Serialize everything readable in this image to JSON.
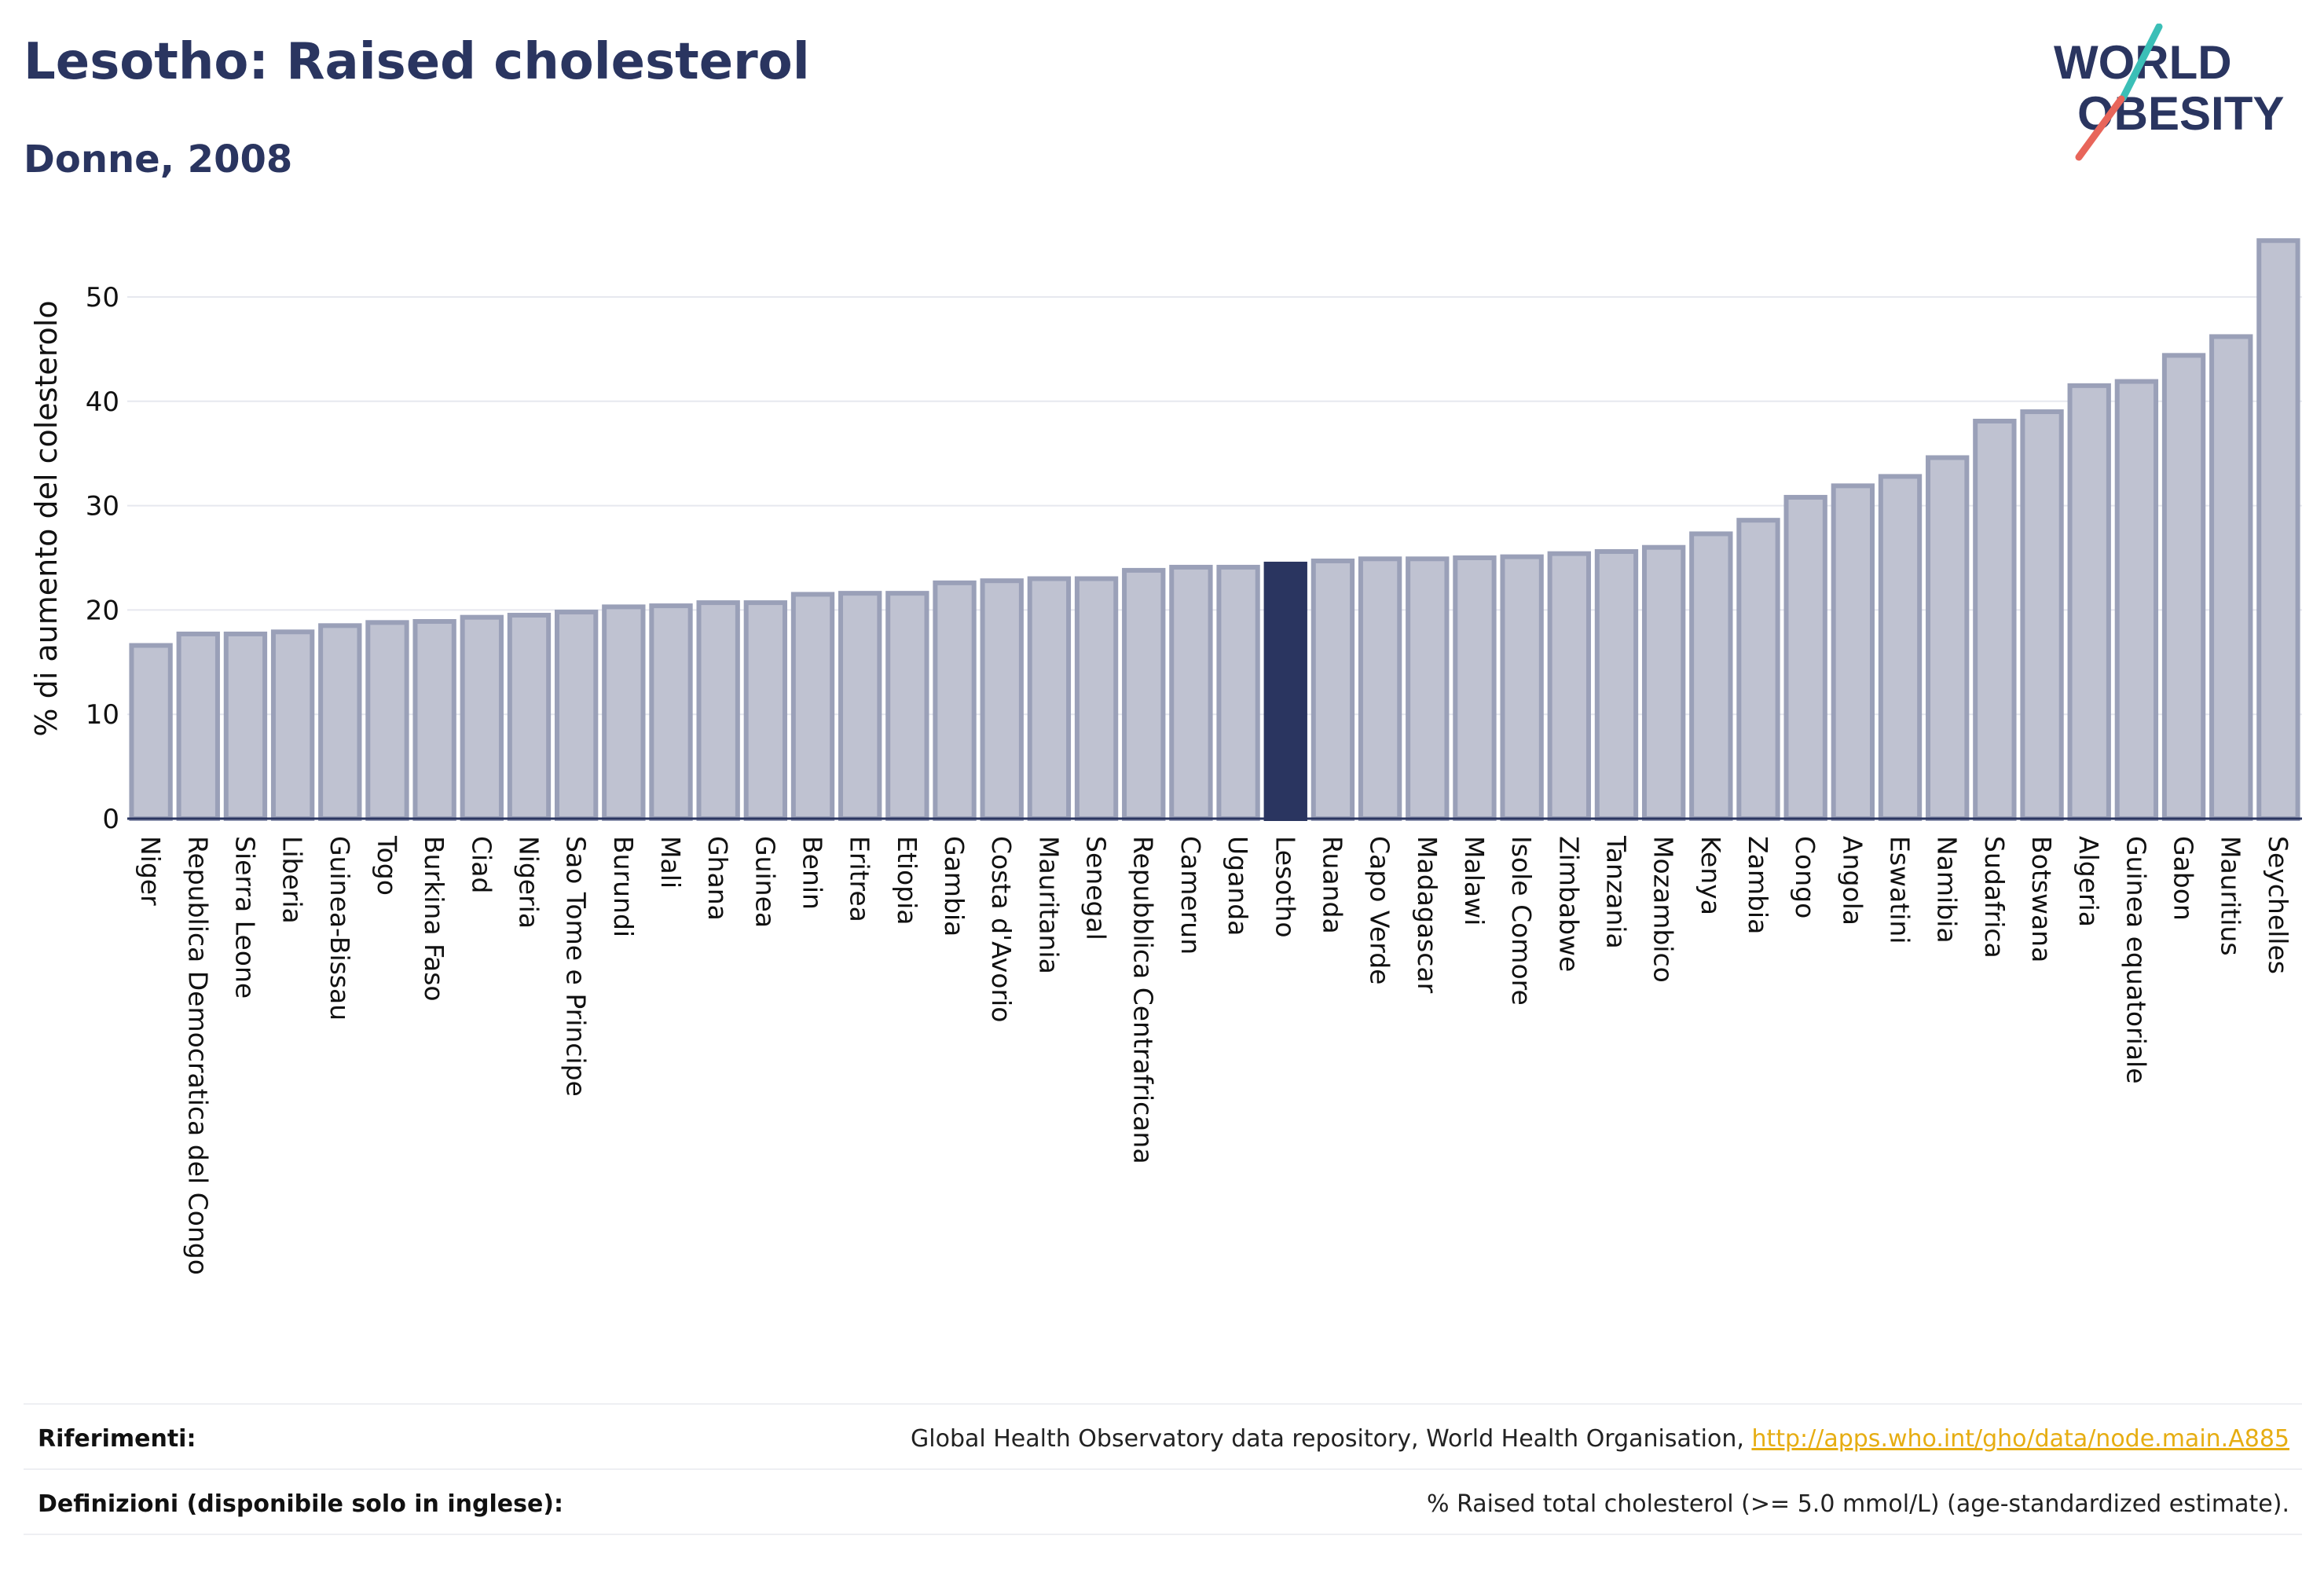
{
  "header": {
    "title": "Lesotho: Raised cholesterol",
    "subtitle": "Donne, 2008"
  },
  "logo": {
    "line1": "WORLD",
    "line2": "OBESITY",
    "accent_teal": "#3bbfb7",
    "accent_red": "#e8655a",
    "text_color": "#2a3560"
  },
  "colors": {
    "bar_fill": "#bfc2d1",
    "bar_stroke": "#9aa0b8",
    "highlight": "#2a3560",
    "grid": "#e6e8ef",
    "axis": "#2a3560"
  },
  "chart_data": {
    "type": "bar",
    "ylabel": "% di aumento del colesterolo",
    "xlabel": "",
    "ylim": [
      0,
      57
    ],
    "yticks": [
      0,
      10,
      20,
      30,
      40,
      50
    ],
    "grid": true,
    "highlight": "Lesotho",
    "categories": [
      "Niger",
      "Republica Democratica del Congo",
      "Sierra Leone",
      "Liberia",
      "Guinea-Bissau",
      "Togo",
      "Burkina Faso",
      "Ciad",
      "Nigeria",
      "Sao Tome e Principe",
      "Burundi",
      "Mali",
      "Ghana",
      "Guinea",
      "Benin",
      "Eritrea",
      "Etiopia",
      "Gambia",
      "Costa d'Avorio",
      "Mauritania",
      "Senegal",
      "Repubblica Centrafricana",
      "Camerun",
      "Uganda",
      "Lesotho",
      "Ruanda",
      "Capo Verde",
      "Madagascar",
      "Malawi",
      "Isole Comore",
      "Zimbabwe",
      "Tanzania",
      "Mozambico",
      "Kenya",
      "Zambia",
      "Congo",
      "Angola",
      "Eswatini",
      "Namibia",
      "Sudafrica",
      "Botswana",
      "Algeria",
      "Guinea equatoriale",
      "Gabon",
      "Mauritius",
      "Seychelles"
    ],
    "values": [
      16.6,
      17.7,
      17.7,
      17.9,
      18.5,
      18.8,
      18.9,
      19.3,
      19.5,
      19.8,
      20.3,
      20.4,
      20.7,
      20.7,
      21.5,
      21.6,
      21.6,
      22.6,
      22.8,
      23.0,
      23.0,
      23.8,
      24.1,
      24.1,
      24.4,
      24.7,
      24.9,
      24.9,
      25.0,
      25.1,
      25.4,
      25.6,
      26.0,
      27.3,
      28.6,
      30.8,
      31.9,
      32.8,
      34.6,
      38.1,
      39.0,
      41.5,
      41.9,
      44.4,
      46.2,
      55.4
    ]
  },
  "footer": {
    "references_label": "Riferimenti:",
    "references_text": "Global Health Observatory data repository, World Health Organisation, ",
    "references_link": "http://apps.who.int/gho/data/node.main.A885",
    "definitions_label": "Definizioni (disponibile solo in inglese):",
    "definitions_text": "% Raised total cholesterol (>= 5.0 mmol/L) (age-standardized estimate)."
  }
}
